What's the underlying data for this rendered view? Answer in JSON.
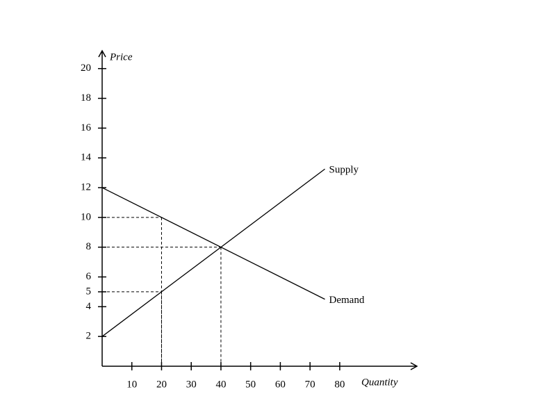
{
  "chart_data": {
    "type": "line",
    "xlabel": "Quantity",
    "ylabel": "Price",
    "xlim": [
      0,
      106
    ],
    "ylim": [
      0,
      21.2
    ],
    "xticks": [
      10,
      20,
      30,
      40,
      50,
      60,
      70,
      80
    ],
    "yticks": [
      2,
      4,
      5,
      6,
      8,
      10,
      12,
      14,
      16,
      18,
      20
    ],
    "series": [
      {
        "name": "Supply",
        "color": "#000000",
        "x": [
          0,
          75
        ],
        "values": [
          2,
          13.25
        ]
      },
      {
        "name": "Demand",
        "color": "#000000",
        "x": [
          0,
          75
        ],
        "values": [
          12,
          4.5
        ]
      }
    ],
    "guides": [
      {
        "x": 20,
        "y": 10
      },
      {
        "x": 20,
        "y": 5
      },
      {
        "x": 40,
        "y": 8
      }
    ]
  }
}
